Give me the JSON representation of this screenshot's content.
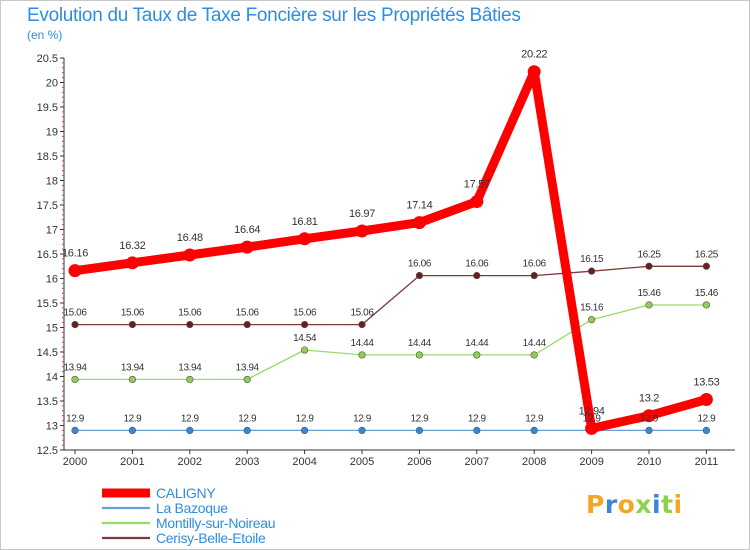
{
  "chart_data": {
    "type": "line",
    "title": "Evolution du Taux de Taxe Foncière sur les Propriétés Bâties",
    "ylabel": "(en %)",
    "xlabel": "",
    "ylim": [
      12.5,
      20.5
    ],
    "yticks": [
      "12.5",
      "13",
      "13.5",
      "14",
      "14.5",
      "15",
      "15.5",
      "16",
      "16.5",
      "17",
      "17.5",
      "18",
      "18.5",
      "19",
      "19.5",
      "20",
      "20.5"
    ],
    "categories": [
      "2000",
      "2001",
      "2002",
      "2003",
      "2004",
      "2005",
      "2006",
      "2007",
      "2008",
      "2009",
      "2010",
      "2011"
    ],
    "legend_position": "bottom-left",
    "series": [
      {
        "name": "CALIGNY",
        "color": "#ff0000",
        "emphasis": true,
        "values": [
          16.16,
          16.32,
          16.48,
          16.64,
          16.81,
          16.97,
          17.14,
          17.57,
          20.22,
          12.94,
          13.2,
          13.53
        ],
        "labels": [
          "16.16",
          "16.32",
          "16.48",
          "16.64",
          "16.81",
          "16.97",
          "17.14",
          "17.57",
          "20.22",
          "12.94",
          "13.2",
          "13.53"
        ]
      },
      {
        "name": "La Bazoque",
        "color": "#6aa0d0",
        "marker": "#3a86d6",
        "values": [
          12.9,
          12.9,
          12.9,
          12.9,
          12.9,
          12.9,
          12.9,
          12.9,
          12.9,
          12.9,
          12.9,
          12.9
        ],
        "labels": [
          "12.9",
          "12.9",
          "12.9",
          "12.9",
          "12.9",
          "12.9",
          "12.9",
          "12.9",
          "12.9",
          "12.9",
          "12.9",
          "12.9"
        ]
      },
      {
        "name": "Montilly-sur-Noireau",
        "color": "#9ada6a",
        "marker": "#8fd14f",
        "values": [
          13.94,
          13.94,
          13.94,
          13.94,
          14.54,
          14.44,
          14.44,
          14.44,
          14.44,
          15.16,
          15.46,
          15.46
        ],
        "labels": [
          "13.94",
          "13.94",
          "13.94",
          "13.94",
          "14.54",
          "14.44",
          "14.44",
          "14.44",
          "14.44",
          "15.16",
          "15.46",
          "15.46"
        ]
      },
      {
        "name": "Cerisy-Belle-Etoile",
        "color": "#7a3a3a",
        "marker": "#6a1f1f",
        "values": [
          15.06,
          15.06,
          15.06,
          15.06,
          15.06,
          15.06,
          16.06,
          16.06,
          16.06,
          16.15,
          16.25,
          16.25
        ],
        "labels": [
          "15.06",
          "15.06",
          "15.06",
          "15.06",
          "15.06",
          "15.06",
          "16.06",
          "16.06",
          "16.06",
          "16.15",
          "16.25",
          "16.25"
        ]
      }
    ]
  },
  "logo": {
    "text": "Proxiti",
    "letters": [
      {
        "char": "P",
        "color": "#f5a623"
      },
      {
        "char": "r",
        "color": "#3a86d6"
      },
      {
        "char": "o",
        "color": "#f5a623"
      },
      {
        "char": "x",
        "color": "#8fd14f"
      },
      {
        "char": "i",
        "color": "#3a86d6"
      },
      {
        "char": "t",
        "color": "#8fd14f"
      },
      {
        "char": "i",
        "color": "#f5a623"
      }
    ]
  }
}
